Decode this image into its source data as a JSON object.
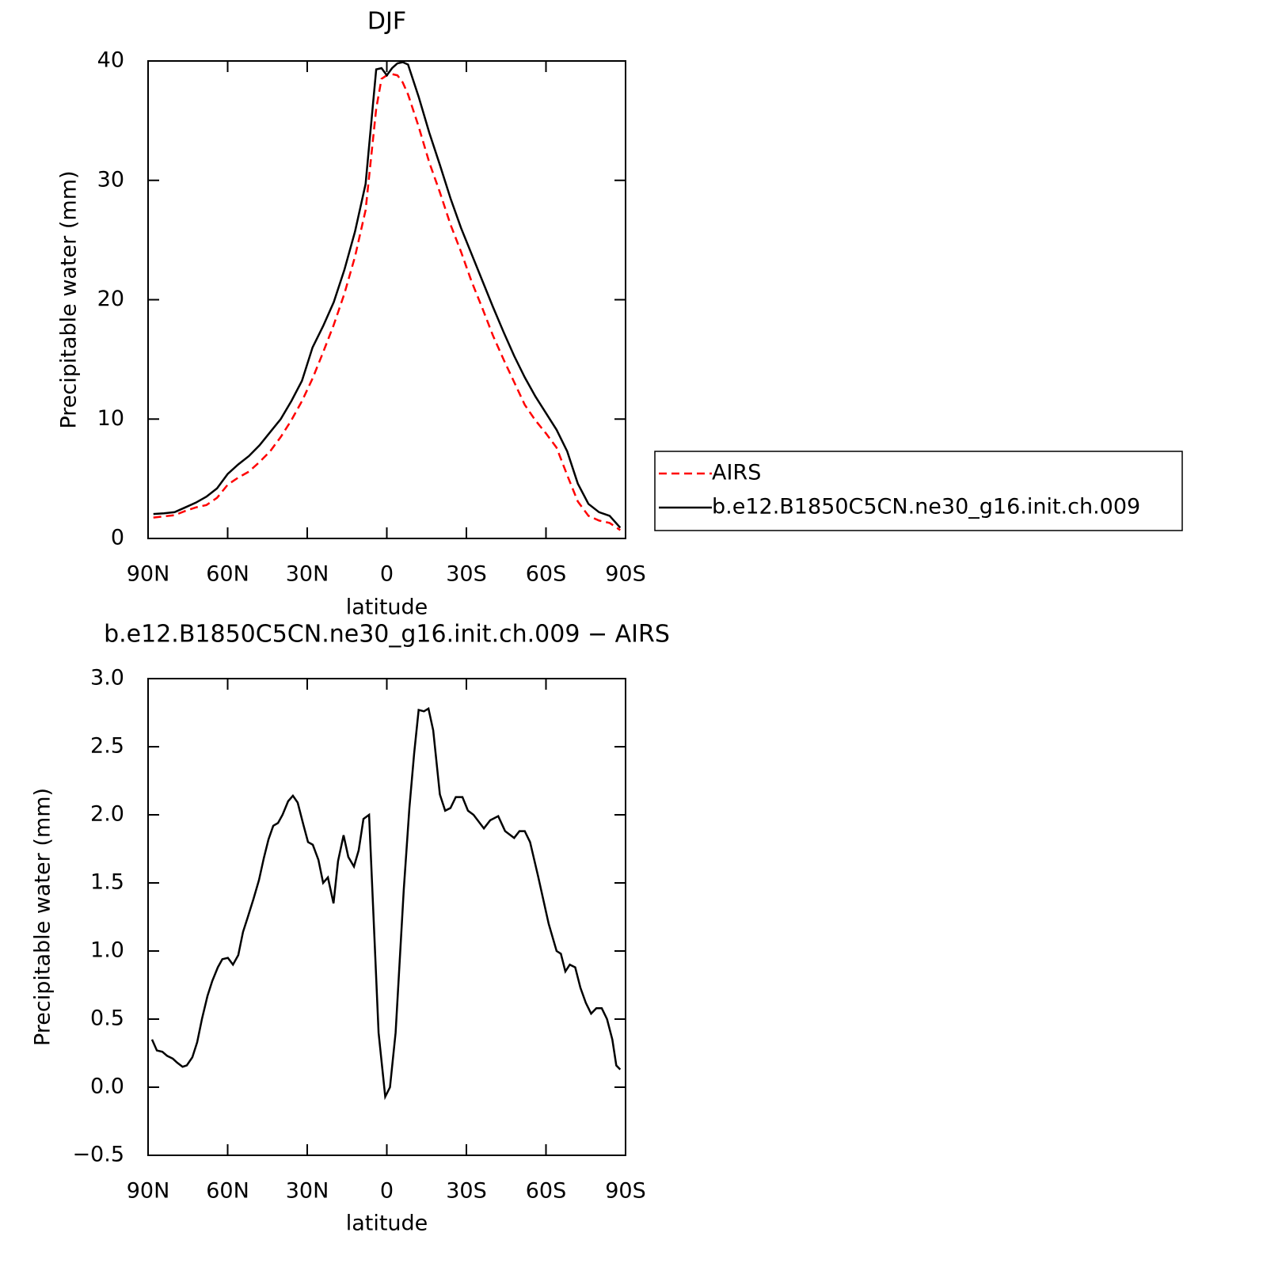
{
  "chart_data": [
    {
      "type": "line",
      "title": "DJF",
      "x_label": "latitude",
      "y_label": "Precipitable water (mm)",
      "x": [
        88,
        84,
        80,
        76,
        72,
        68,
        64,
        60,
        56,
        52,
        48,
        44,
        40,
        36,
        32,
        28,
        24,
        20,
        16,
        12,
        8,
        4,
        2,
        0,
        -2,
        -4,
        -6,
        -8,
        -12,
        -16,
        -20,
        -24,
        -28,
        -32,
        -36,
        -40,
        -44,
        -48,
        -52,
        -56,
        -60,
        -64,
        -68,
        -72,
        -76,
        -80,
        -84,
        -88
      ],
      "series": [
        {
          "name": "AIRS",
          "color": "#ff0000",
          "dashed": true,
          "values": [
            1.75,
            1.85,
            1.95,
            2.3,
            2.6,
            2.8,
            3.4,
            4.5,
            5.1,
            5.6,
            6.4,
            7.3,
            8.5,
            9.9,
            11.5,
            13.4,
            15.6,
            17.9,
            20.5,
            23.6,
            27.5,
            36,
            38.5,
            38.8,
            38.9,
            38.8,
            38.2,
            37.2,
            34.5,
            31.5,
            29,
            26.3,
            24,
            21.5,
            19.3,
            17,
            15,
            13.1,
            11.2,
            9.9,
            8.8,
            7.6,
            5.3,
            3.1,
            1.9,
            1.5,
            1.3,
            0.7
          ]
        },
        {
          "name": "b.e12.B1850C5CN.ne30_g16.init.ch.009",
          "color": "#000000",
          "dashed": false,
          "values": [
            2.05,
            2.1,
            2.2,
            2.6,
            3.0,
            3.5,
            4.2,
            5.4,
            6.2,
            6.9,
            7.8,
            8.9,
            10.0,
            11.5,
            13.2,
            16.0,
            17.8,
            19.8,
            22.5,
            25.7,
            29.7,
            39.3,
            39.4,
            38.8,
            39.4,
            39.8,
            39.9,
            39.7,
            37,
            34,
            31.3,
            28.5,
            26,
            23.8,
            21.6,
            19.4,
            17.3,
            15.3,
            13.5,
            11.9,
            10.5,
            9.1,
            7.3,
            4.6,
            2.9,
            2.2,
            1.9,
            0.9
          ]
        }
      ],
      "xlim": [
        90,
        -90
      ],
      "xticks": [
        {
          "value": 90,
          "label": "90N"
        },
        {
          "value": 60,
          "label": "60N"
        },
        {
          "value": 30,
          "label": "30N"
        },
        0,
        {
          "value": -30,
          "label": "30S"
        },
        {
          "value": -60,
          "label": "60S"
        },
        {
          "value": -90,
          "label": "90S"
        }
      ],
      "ylim": [
        0,
        40
      ],
      "yticks": [
        0,
        10,
        20,
        30,
        40
      ],
      "legend": "right"
    },
    {
      "type": "line",
      "title": "b.e12.B1850C5CN.ne30_g16.init.ch.009 − AIRS",
      "x_label": "latitude",
      "y_label": "Precipitable water (mm)",
      "x": [
        88.5,
        86.7,
        84.6,
        82.8,
        80.7,
        79,
        77,
        75.4,
        73.3,
        71.5,
        69.7,
        67.6,
        65.8,
        63.7,
        62,
        59.9,
        58,
        56,
        54.2,
        52.4,
        50.3,
        48.2,
        46.4,
        44.6,
        42.8,
        41,
        39.3,
        37.2,
        35.4,
        33.6,
        31.5,
        29.7,
        27.9,
        25.8,
        24,
        22.2,
        20.1,
        18.4,
        16.3,
        14.5,
        12.4,
        10.6,
        8.8,
        6.7,
        3.1,
        0.6,
        -1.2,
        -3.3,
        -6.4,
        -8.5,
        -10.3,
        -12,
        -14,
        -15.7,
        -17.5,
        -20,
        -22,
        -24,
        -26,
        -28.5,
        -30.6,
        -32.7,
        -36.6,
        -39,
        -42,
        -44.6,
        -48,
        -50,
        -52,
        -54,
        -57,
        -61,
        -64,
        -65.6,
        -67.3,
        -69,
        -71,
        -73,
        -75,
        -77,
        -79,
        -81,
        -83,
        -85,
        -86.5,
        -88
      ],
      "series": [
        {
          "color": "#000000",
          "dashed": false,
          "values": [
            0.35,
            0.27,
            0.26,
            0.23,
            0.21,
            0.18,
            0.15,
            0.16,
            0.22,
            0.33,
            0.5,
            0.67,
            0.78,
            0.88,
            0.94,
            0.95,
            0.9,
            0.97,
            1.14,
            1.25,
            1.38,
            1.52,
            1.68,
            1.82,
            1.92,
            1.94,
            2.0,
            2.1,
            2.14,
            2.09,
            1.93,
            1.8,
            1.78,
            1.67,
            1.5,
            1.54,
            1.35,
            1.66,
            1.85,
            1.69,
            1.62,
            1.74,
            1.97,
            2.0,
            0.4,
            -0.07,
            0.0,
            0.4,
            1.45,
            2.05,
            2.45,
            2.77,
            2.76,
            2.78,
            2.62,
            2.15,
            2.03,
            2.05,
            2.13,
            2.13,
            2.03,
            2.0,
            1.9,
            1.96,
            1.99,
            1.88,
            1.83,
            1.88,
            1.88,
            1.8,
            1.55,
            1.2,
            1.0,
            0.98,
            0.85,
            0.9,
            0.88,
            0.73,
            0.62,
            0.54,
            0.58,
            0.58,
            0.5,
            0.35,
            0.16,
            0.13
          ]
        }
      ],
      "xlim": [
        90,
        -90
      ],
      "xticks": [
        {
          "value": 90,
          "label": "90N"
        },
        {
          "value": 60,
          "label": "60N"
        },
        {
          "value": 30,
          "label": "30N"
        },
        0,
        {
          "value": -30,
          "label": "30S"
        },
        {
          "value": -60,
          "label": "60S"
        },
        {
          "value": -90,
          "label": "90S"
        }
      ],
      "ylim": [
        -0.5,
        3
      ],
      "yticks": [
        {
          "value": -0.5,
          "label": "−0.5"
        },
        {
          "value": 0,
          "label": "0.0"
        },
        {
          "value": 0.5,
          "label": "0.5"
        },
        {
          "value": 1,
          "label": "1.0"
        },
        {
          "value": 1.5,
          "label": "1.5"
        },
        {
          "value": 2,
          "label": "2.0"
        },
        {
          "value": 2.5,
          "label": "2.5"
        },
        {
          "value": 3,
          "label": "3.0"
        }
      ]
    }
  ]
}
